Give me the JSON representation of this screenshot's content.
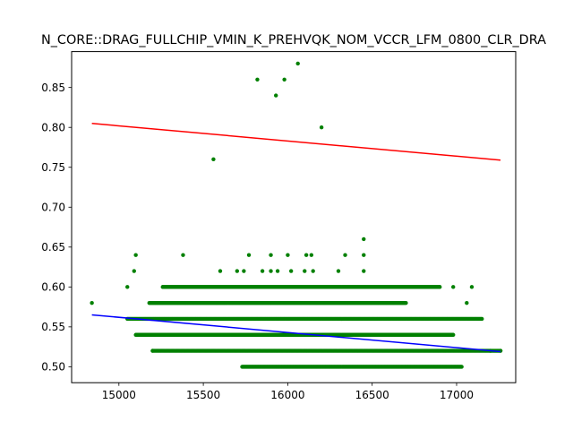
{
  "chart_data": {
    "type": "scatter",
    "title": "N_CORE::DRAG_FULLCHIP_VMIN_K_PREHVQK_NOM_VCCR_LFM_0800_CLR_DRA",
    "xlabel": "",
    "ylabel": "",
    "xlim": [
      14720,
      17350
    ],
    "ylim": [
      0.48,
      0.895
    ],
    "xticks": [
      15000,
      15500,
      16000,
      16500,
      17000
    ],
    "yticks": [
      0.5,
      0.55,
      0.6,
      0.65,
      0.7,
      0.75,
      0.8,
      0.85
    ],
    "xtick_labels": [
      "15000",
      "15500",
      "16000",
      "16500",
      "17000"
    ],
    "ytick_labels": [
      "0.50",
      "0.55",
      "0.60",
      "0.65",
      "0.70",
      "0.75",
      "0.80",
      "0.85"
    ],
    "grid": false,
    "point_color": "#008000",
    "outliers": [
      {
        "x": 15560,
        "y": 0.76
      },
      {
        "x": 15820,
        "y": 0.86
      },
      {
        "x": 15930,
        "y": 0.84
      },
      {
        "x": 15980,
        "y": 0.86
      },
      {
        "x": 16060,
        "y": 0.88
      },
      {
        "x": 16200,
        "y": 0.8
      },
      {
        "x": 15100,
        "y": 0.64
      },
      {
        "x": 15380,
        "y": 0.64
      },
      {
        "x": 15770,
        "y": 0.64
      },
      {
        "x": 15900,
        "y": 0.64
      },
      {
        "x": 16000,
        "y": 0.64
      },
      {
        "x": 16110,
        "y": 0.64
      },
      {
        "x": 16140,
        "y": 0.64
      },
      {
        "x": 16340,
        "y": 0.64
      },
      {
        "x": 16450,
        "y": 0.64
      },
      {
        "x": 16450,
        "y": 0.66
      },
      {
        "x": 14840,
        "y": 0.58
      },
      {
        "x": 15090,
        "y": 0.62
      },
      {
        "x": 15600,
        "y": 0.62
      },
      {
        "x": 15700,
        "y": 0.62
      },
      {
        "x": 15740,
        "y": 0.62
      },
      {
        "x": 15850,
        "y": 0.62
      },
      {
        "x": 15900,
        "y": 0.62
      },
      {
        "x": 15940,
        "y": 0.62
      },
      {
        "x": 16020,
        "y": 0.62
      },
      {
        "x": 16100,
        "y": 0.62
      },
      {
        "x": 16150,
        "y": 0.62
      },
      {
        "x": 16300,
        "y": 0.62
      },
      {
        "x": 16450,
        "y": 0.62
      },
      {
        "x": 15050,
        "y": 0.6
      },
      {
        "x": 15260,
        "y": 0.6
      },
      {
        "x": 16900,
        "y": 0.6
      },
      {
        "x": 16980,
        "y": 0.6
      },
      {
        "x": 17090,
        "y": 0.6
      },
      {
        "x": 17060,
        "y": 0.58
      },
      {
        "x": 17200,
        "y": 0.52
      },
      {
        "x": 17260,
        "y": 0.52
      },
      {
        "x": 15200,
        "y": 0.52
      }
    ],
    "bands": [
      {
        "y": 0.5,
        "x_from": 15730,
        "x_to": 17030
      },
      {
        "y": 0.52,
        "x_from": 15200,
        "x_to": 17260
      },
      {
        "y": 0.54,
        "x_from": 15100,
        "x_to": 16980
      },
      {
        "y": 0.56,
        "x_from": 15050,
        "x_to": 17150
      },
      {
        "y": 0.58,
        "x_from": 15180,
        "x_to": 16700
      },
      {
        "y": 0.6,
        "x_from": 15260,
        "x_to": 16900
      }
    ],
    "series": [
      {
        "color": "#ff0000",
        "x": [
          14840,
          17260
        ],
        "y": [
          0.805,
          0.759
        ]
      },
      {
        "color": "#0000ff",
        "x": [
          14840,
          17260
        ],
        "y": [
          0.565,
          0.519
        ]
      }
    ]
  }
}
